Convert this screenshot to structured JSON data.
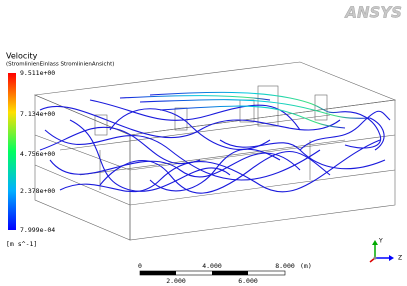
{
  "logo": "ANSYS",
  "legend": {
    "title": "Velocity",
    "subtitle": "(StromlinienEinlass StromlinienAnsicht)",
    "labels": [
      "9.511e+00",
      "7.134e+00",
      "4.756e+00",
      "2.378e+00",
      "7.999e-04"
    ],
    "unit": "[m s^-1]"
  },
  "scale": {
    "top": [
      "0",
      "4.000",
      "8.000"
    ],
    "unit": "(m)",
    "bottom": [
      "2.000",
      "6.000"
    ]
  },
  "axes": {
    "y": "Y",
    "z": "Z"
  }
}
